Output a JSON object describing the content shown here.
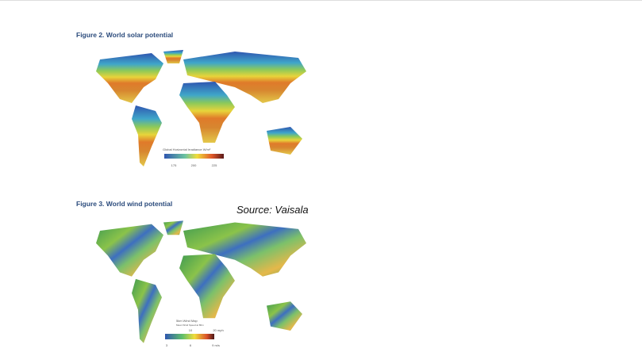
{
  "figures": [
    {
      "title": "Figure 2. World solar potential",
      "legend": {
        "title": "Global Horizontal Irradiance W/m²",
        "ticks": [
          "175",
          "200",
          "225"
        ]
      }
    },
    {
      "title": "Figure 3. World wind potential",
      "source": "Source: Vaisala",
      "legend": {
        "title": "5km Wind Map",
        "subtitle": "Mean Wind Speed at 80m",
        "ticks_top": [
          "10",
          "20 mph"
        ],
        "ticks_bottom": [
          "3",
          "6",
          "9 m/s"
        ]
      }
    }
  ]
}
